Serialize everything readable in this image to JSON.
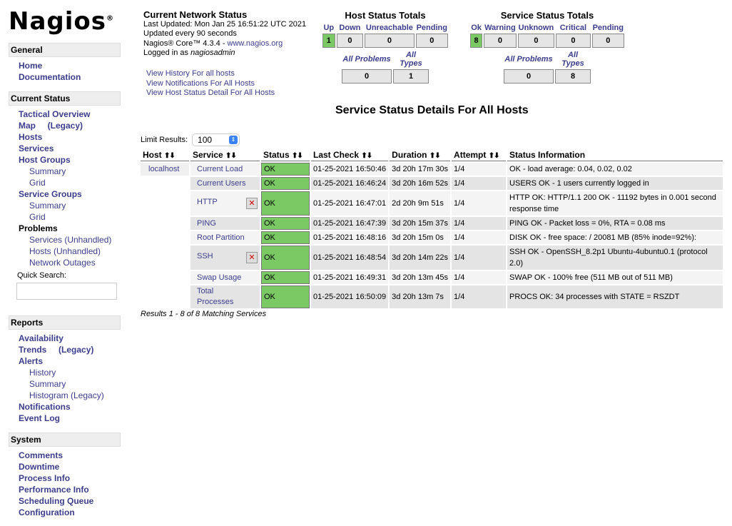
{
  "logo": "Nagios",
  "sidebar": [
    {
      "header": "General",
      "items": [
        {
          "label": "Home",
          "level": 1
        },
        {
          "label": "Documentation",
          "level": 1
        }
      ]
    },
    {
      "header": "Current Status",
      "items": [
        {
          "label": "Tactical Overview",
          "level": 1
        },
        {
          "label": "Map     (Legacy)",
          "level": 1
        },
        {
          "label": "Hosts",
          "level": 1
        },
        {
          "label": "Services",
          "level": 1
        },
        {
          "label": "Host Groups",
          "level": 1
        },
        {
          "label": "Summary",
          "level": 2
        },
        {
          "label": "Grid",
          "level": 2
        },
        {
          "label": "Service Groups",
          "level": 1
        },
        {
          "label": "Summary",
          "level": 2
        },
        {
          "label": "Grid",
          "level": 2
        },
        {
          "label": "Problems",
          "level": 1,
          "plain": true
        },
        {
          "label": "Services (Unhandled)",
          "level": 2
        },
        {
          "label": "Hosts (Unhandled)",
          "level": 2
        },
        {
          "label": "Network Outages",
          "level": 2
        }
      ],
      "quick_search_label": "Quick Search:"
    },
    {
      "header": "Reports",
      "items": [
        {
          "label": "Availability",
          "level": 1
        },
        {
          "label": "Trends     (Legacy)",
          "level": 1
        },
        {
          "label": "Alerts",
          "level": 1
        },
        {
          "label": "History",
          "level": 2
        },
        {
          "label": "Summary",
          "level": 2
        },
        {
          "label": "Histogram (Legacy)",
          "level": 2
        },
        {
          "label": "Notifications",
          "level": 1
        },
        {
          "label": "Event Log",
          "level": 1
        }
      ]
    },
    {
      "header": "System",
      "items": [
        {
          "label": "Comments",
          "level": 1
        },
        {
          "label": "Downtime",
          "level": 1
        },
        {
          "label": "Process Info",
          "level": 1
        },
        {
          "label": "Performance Info",
          "level": 1
        },
        {
          "label": "Scheduling Queue",
          "level": 1
        },
        {
          "label": "Configuration",
          "level": 1
        }
      ]
    }
  ],
  "info": {
    "title": "Current Network Status",
    "updated": "Last Updated: Mon Jan 25 16:51:22 UTC 2021",
    "interval": "Updated every 90 seconds",
    "version": "Nagios® Core™ 4.3.4 - ",
    "site": "www.nagios.org",
    "logged_prefix": "Logged in as ",
    "user": "nagiosadmin"
  },
  "links": [
    "View History For all hosts",
    "View Notifications For All Hosts",
    "View Host Status Detail For All Hosts"
  ],
  "host_totals": {
    "title": "Host Status Totals",
    "labels": [
      "Up",
      "Down",
      "Unreachable",
      "Pending"
    ],
    "values": [
      "1",
      "0",
      "0",
      "0"
    ],
    "sub_labels": [
      "All Problems",
      "All Types"
    ],
    "sub_values": [
      "0",
      "1"
    ]
  },
  "service_totals": {
    "title": "Service Status Totals",
    "labels": [
      "Ok",
      "Warning",
      "Unknown",
      "Critical",
      "Pending"
    ],
    "values": [
      "8",
      "0",
      "0",
      "0",
      "0"
    ],
    "sub_labels": [
      "All Problems",
      "All Types"
    ],
    "sub_values": [
      "0",
      "8"
    ]
  },
  "page_title": "Service Status Details For All Hosts",
  "limit": {
    "label": "Limit Results:",
    "value": "100"
  },
  "table": {
    "headers": [
      "Host",
      "Service",
      "Status",
      "Last Check",
      "Duration",
      "Attempt",
      "Status Information"
    ],
    "rows": [
      {
        "host": "localhost",
        "service": "Current Load",
        "status": "OK",
        "last": "01-25-2021 16:50:46",
        "dur": "3d 20h 17m 30s",
        "att": "1/4",
        "info": "OK - load average: 0.04, 0.02, 0.02"
      },
      {
        "host": "",
        "service": "Current Users",
        "status": "OK",
        "last": "01-25-2021 16:46:24",
        "dur": "3d 20h 16m 52s",
        "att": "1/4",
        "info": "USERS OK - 1 users currently logged in"
      },
      {
        "host": "",
        "service": "HTTP",
        "icon": "notifications-disabled-icon",
        "status": "OK",
        "last": "01-25-2021 16:47:01",
        "dur": "2d 20h 9m 51s",
        "att": "1/4",
        "info": "HTTP OK: HTTP/1.1 200 OK - 11192 bytes in 0.001 second response time"
      },
      {
        "host": "",
        "service": "PING",
        "status": "OK",
        "last": "01-25-2021 16:47:39",
        "dur": "3d 20h 15m 37s",
        "att": "1/4",
        "info": "PING OK - Packet loss = 0%, RTA = 0.08 ms"
      },
      {
        "host": "",
        "service": "Root Partition",
        "status": "OK",
        "last": "01-25-2021 16:48:16",
        "dur": "3d 20h 15m 0s",
        "att": "1/4",
        "info": "DISK OK - free space: / 20081 MB (85% inode=92%):"
      },
      {
        "host": "",
        "service": "SSH",
        "icon": "notifications-disabled-icon",
        "status": "OK",
        "last": "01-25-2021 16:48:54",
        "dur": "3d 20h 14m 22s",
        "att": "1/4",
        "info": "SSH OK - OpenSSH_8.2p1 Ubuntu-4ubuntu0.1 (protocol 2.0)"
      },
      {
        "host": "",
        "service": "Swap Usage",
        "status": "OK",
        "last": "01-25-2021 16:49:31",
        "dur": "3d 20h 13m 45s",
        "att": "1/4",
        "info": "SWAP OK - 100% free (511 MB out of 511 MB)"
      },
      {
        "host": "",
        "service": "Total Processes",
        "status": "OK",
        "last": "01-25-2021 16:50:09",
        "dur": "3d 20h 13m 7s",
        "att": "1/4",
        "info": "PROCS OK: 34 processes with STATE = RSZDT"
      }
    ]
  },
  "results": "Results 1 - 8 of 8 Matching Services",
  "colors": {
    "ok": "#7bc964",
    "link": "#3c3d8c"
  }
}
